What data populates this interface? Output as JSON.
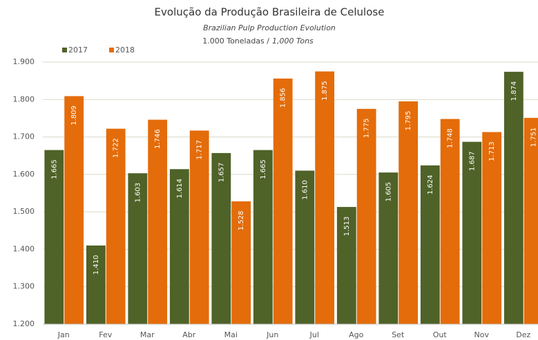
{
  "chart_data": {
    "type": "bar",
    "title": "Evolução da Produção Brasileira de Celulose",
    "subtitle": "Brazilian Pulp Production Evolution",
    "unit_label": [
      "1.000 Toneladas /",
      "1,000 Tons"
    ],
    "categories": [
      "Jan",
      "Fev",
      "Mar",
      "Abr",
      "Mai",
      "Jun",
      "Jul",
      "Ago",
      "Set",
      "Out",
      "Nov",
      "Dez"
    ],
    "series": [
      {
        "name": "2017",
        "color": "#4f6228",
        "values": [
          1665,
          1410,
          1603,
          1614,
          1657,
          1665,
          1610,
          1513,
          1605,
          1624,
          1687,
          1874
        ],
        "value_labels": [
          "1.665",
          "1.410",
          "1.603",
          "1.614",
          "1.657",
          "1.665",
          "1.610",
          "1.513",
          "1.605",
          "1.624",
          "1.687",
          "1.874"
        ]
      },
      {
        "name": "2018",
        "color": "#e46c0a",
        "values": [
          1809,
          1722,
          1746,
          1717,
          1528,
          1856,
          1875,
          1775,
          1795,
          1748,
          1713,
          1751
        ],
        "value_labels": [
          "1.809",
          "1.722",
          "1.746",
          "1.717",
          "1.528",
          "1.856",
          "1.875",
          "1.775",
          "1.795",
          "1.748",
          "1.713",
          "1.751"
        ]
      }
    ],
    "ylim": [
      1200,
      1900
    ],
    "yticks": [
      {
        "value": 1200,
        "label": "1.200"
      },
      {
        "value": 1300,
        "label": "1.300"
      },
      {
        "value": 1400,
        "label": "1.400"
      },
      {
        "value": 1500,
        "label": "1.500"
      },
      {
        "value": 1600,
        "label": "1.600"
      },
      {
        "value": 1700,
        "label": "1.700"
      },
      {
        "value": 1800,
        "label": "1.800"
      },
      {
        "value": 1900,
        "label": "1.900"
      }
    ],
    "grid": true,
    "legend": "top-left"
  }
}
